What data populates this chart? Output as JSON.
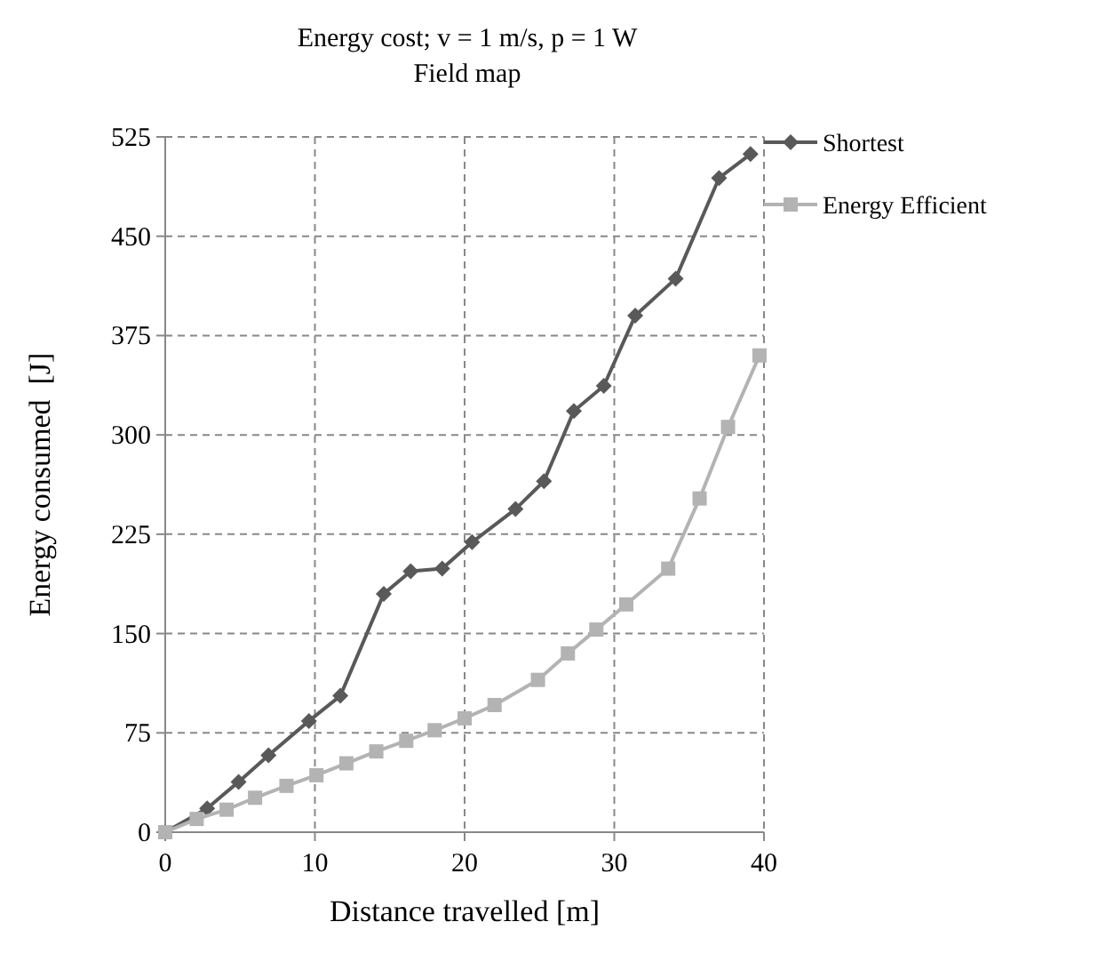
{
  "chart_data": {
    "type": "line",
    "title": "Energy cost; v = 1 m/s, p = 1 W",
    "subtitle": "Field map",
    "xlabel": "Distance travelled [m]",
    "ylabel": "Energy consumed  [J]",
    "xlim": [
      0,
      40
    ],
    "xticks": [
      0,
      10,
      20,
      30,
      40
    ],
    "ylim": [
      0,
      525
    ],
    "yticks": [
      0,
      75,
      150,
      225,
      300,
      375,
      450,
      525
    ],
    "grid": true,
    "legend": "right",
    "series": [
      {
        "name": "Shortest",
        "color": "#595959",
        "marker": "diamond",
        "x": [
          0,
          2.8,
          4.9,
          6.9,
          9.6,
          11.7,
          14.6,
          16.4,
          18.5,
          20.5,
          23.4,
          25.3,
          27.3,
          29.3,
          31.4,
          34.1,
          37.0,
          39.1
        ],
        "values": [
          0,
          18,
          38,
          58,
          84,
          103,
          180,
          197,
          199,
          219,
          244,
          265,
          318,
          337,
          390,
          418,
          494,
          512
        ]
      },
      {
        "name": "Energy Efficient",
        "color": "#b3b3b3",
        "marker": "square",
        "x": [
          0,
          2.1,
          4.1,
          6.0,
          8.1,
          10.1,
          12.1,
          14.1,
          16.1,
          18.0,
          20.0,
          22.0,
          24.9,
          26.9,
          28.8,
          30.8,
          33.6,
          35.7,
          37.6,
          39.7
        ],
        "values": [
          0,
          10,
          17,
          26,
          35,
          43,
          52,
          61,
          69,
          77,
          86,
          96,
          115,
          135,
          153,
          172,
          199,
          252,
          306,
          360
        ]
      }
    ]
  }
}
